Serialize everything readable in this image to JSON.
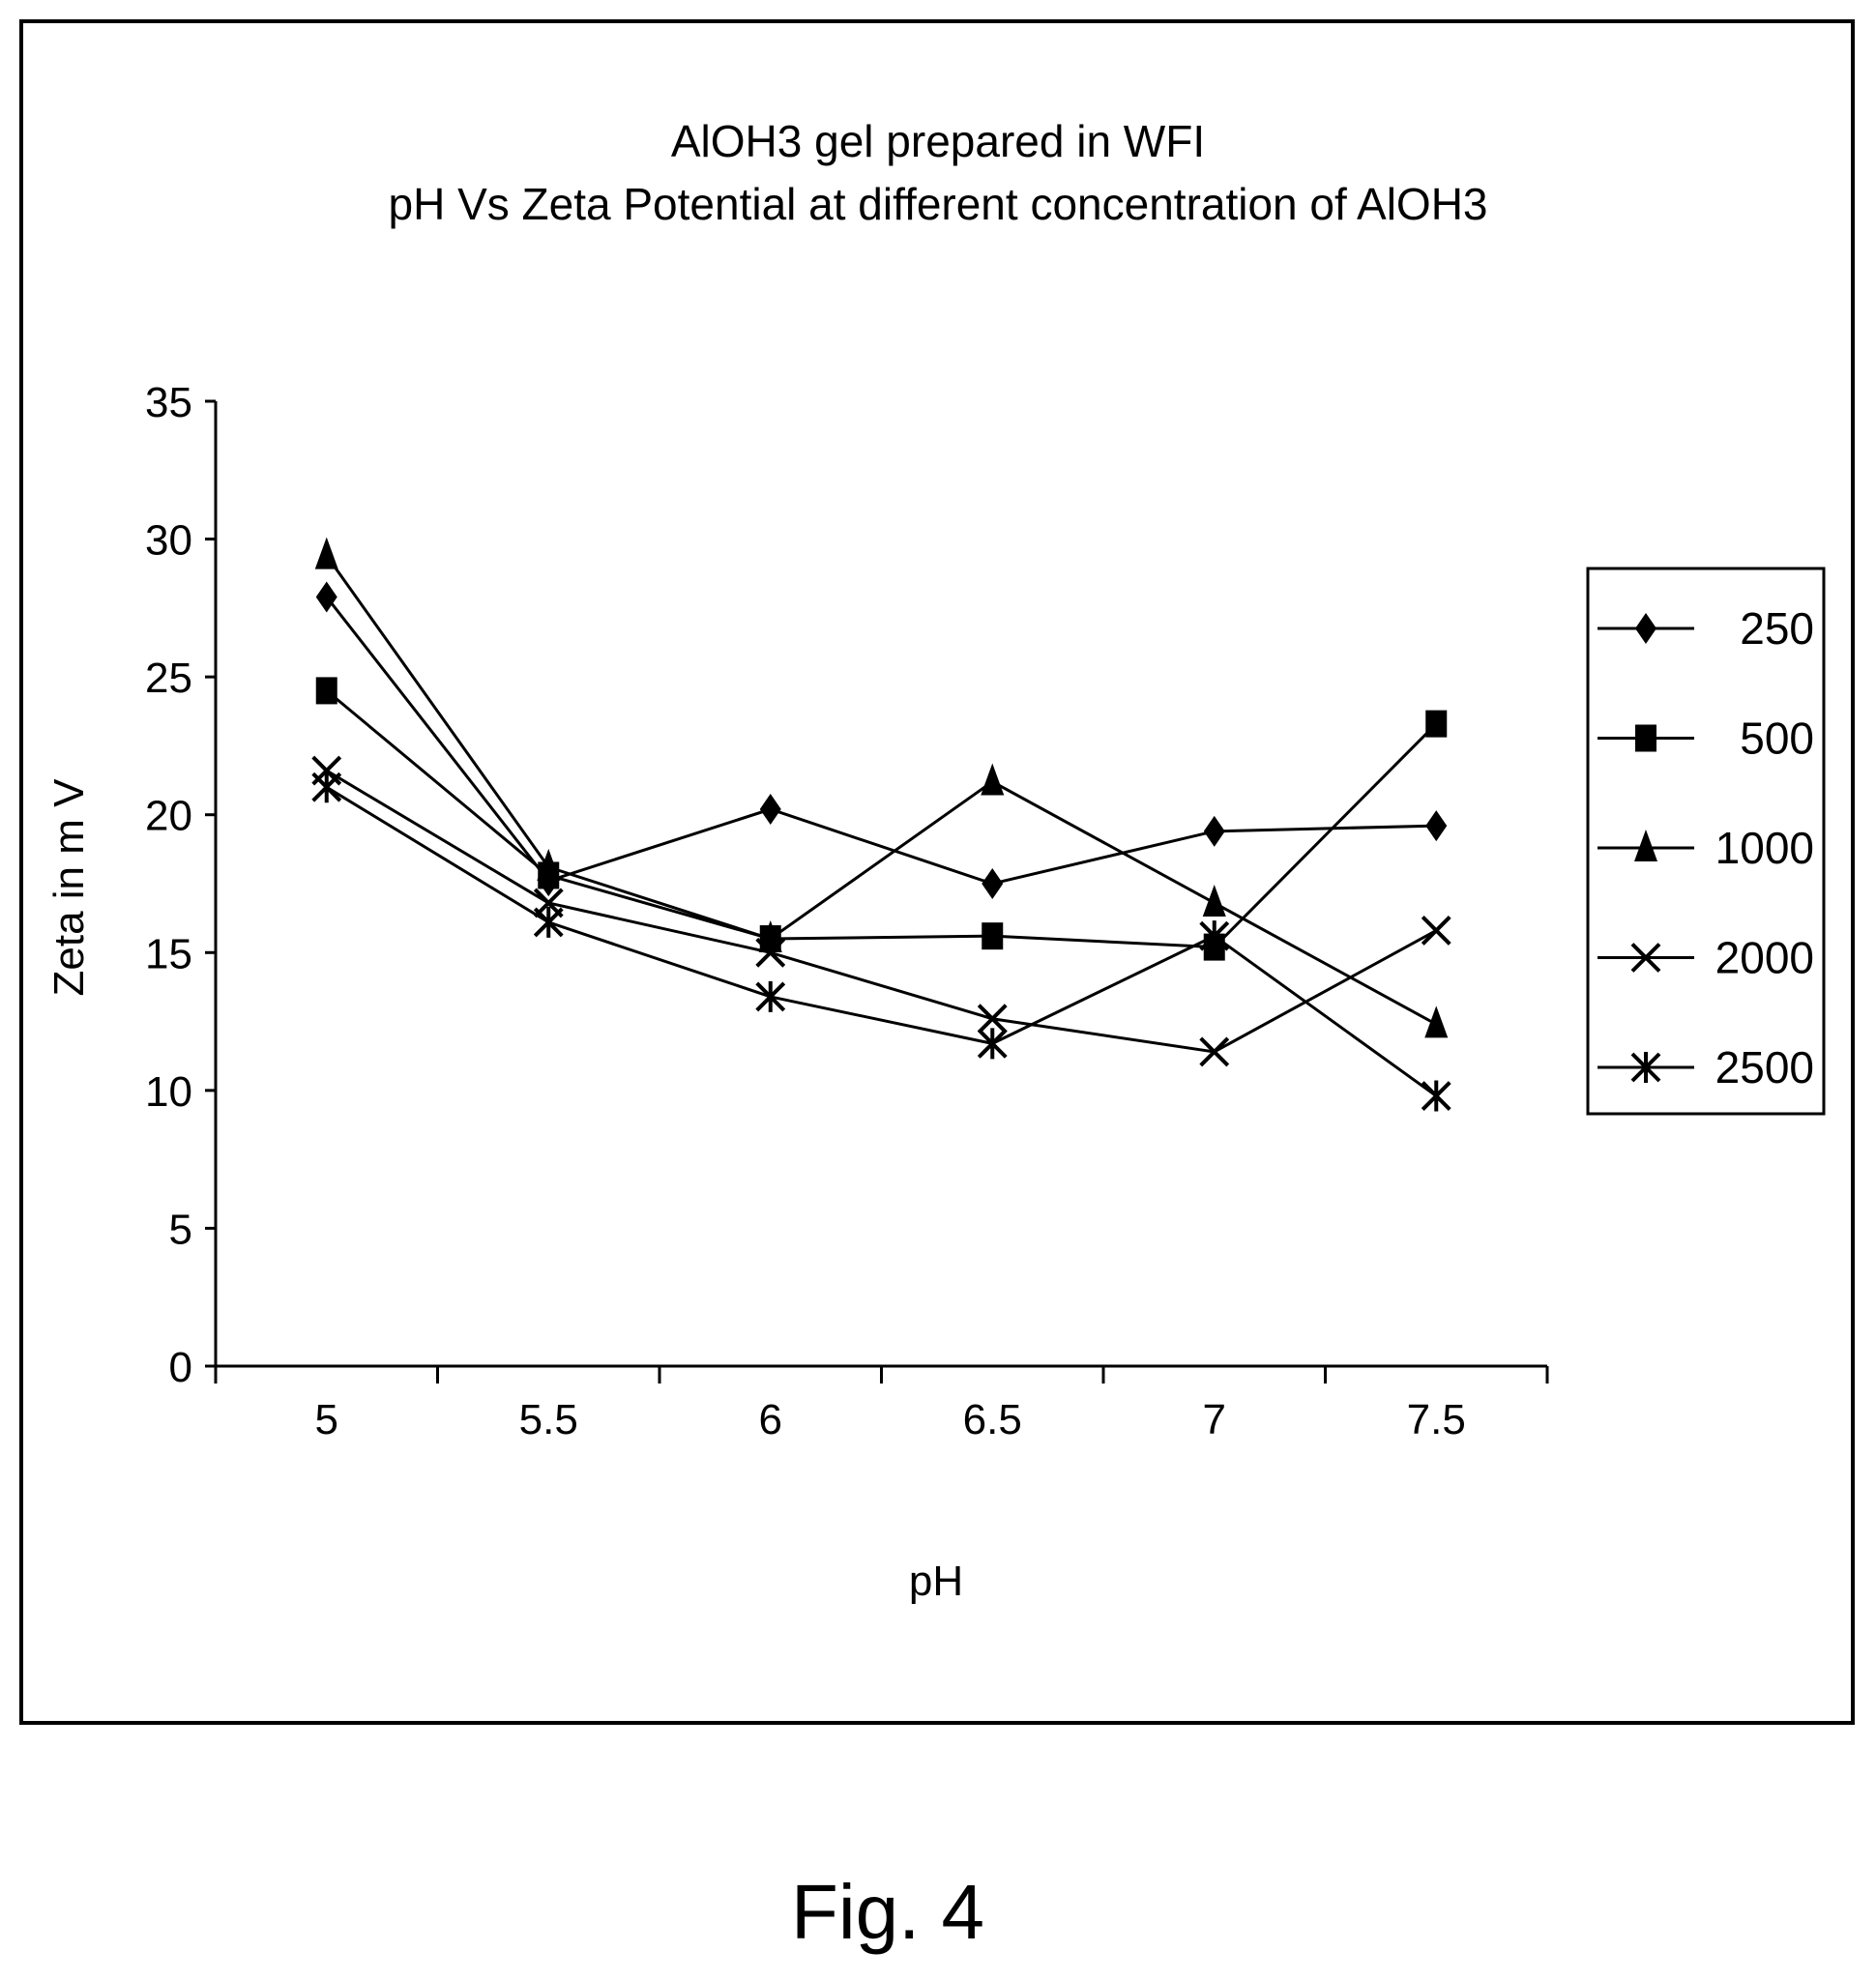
{
  "figure_caption": "Fig. 4",
  "chart_data": {
    "type": "line",
    "title_line1": "AlOH3 gel prepared in WFI",
    "title_line2": "pH Vs Zeta Potential at different concentration of AlOH3",
    "xlabel": "pH",
    "ylabel": "Zeta in m V",
    "categories": [
      "5",
      "5.5",
      "6",
      "6.5",
      "7",
      "7.5"
    ],
    "ylim": [
      0,
      35
    ],
    "yticks": [
      "0",
      "5",
      "10",
      "15",
      "20",
      "25",
      "30",
      "35"
    ],
    "grid": false,
    "legend_position": "right",
    "series": [
      {
        "name": "250",
        "marker": "diamond",
        "values": [
          27.9,
          17.6,
          20.2,
          17.5,
          19.4,
          19.6
        ]
      },
      {
        "name": "500",
        "marker": "square",
        "values": [
          24.5,
          17.8,
          15.5,
          15.6,
          15.2,
          23.3
        ]
      },
      {
        "name": "1000",
        "marker": "triangle",
        "values": [
          29.4,
          18.1,
          15.5,
          21.2,
          16.8,
          12.4
        ]
      },
      {
        "name": "2000",
        "marker": "x",
        "values": [
          21.6,
          16.8,
          15.0,
          12.6,
          11.4,
          15.8
        ]
      },
      {
        "name": "2500",
        "marker": "asterisk",
        "values": [
          21.0,
          16.1,
          13.4,
          11.7,
          15.6,
          9.8
        ]
      }
    ]
  }
}
